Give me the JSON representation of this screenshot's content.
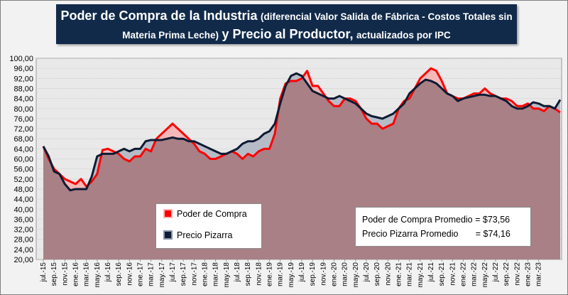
{
  "title": {
    "part1": "Poder de Compra de la Industria",
    "part2": "(diferencial Valor Salida de Fábrica - Costos Totales sin",
    "part3": "Materia Prima Leche)",
    "part4": "y Precio al Productor,",
    "part5": "actualizados por IPC"
  },
  "legend": {
    "poder": "Poder de Compra",
    "pizarra": "Precio Pizarra"
  },
  "averages": {
    "poder": "Poder de Compra Promedio = $73,56",
    "pizarra": "Precio Pizarra Promedio       = $74,16"
  },
  "colors": {
    "poder": "#ff0000",
    "pizarra": "#0d1b33",
    "below_fill": "#a88086",
    "poder_above_fill": "#f5b8b8",
    "pizarra_above_fill": "#b6bcc7",
    "title_bg": "#112a4a"
  },
  "chart_data": {
    "type": "line",
    "ylim": [
      20,
      100
    ],
    "ytick_step": 4,
    "yticks": [
      "20,00",
      "24,00",
      "28,00",
      "32,00",
      "36,00",
      "40,00",
      "44,00",
      "48,00",
      "52,00",
      "56,00",
      "60,00",
      "64,00",
      "68,00",
      "72,00",
      "76,00",
      "80,00",
      "84,00",
      "88,00",
      "92,00",
      "96,00",
      "100,00"
    ],
    "x_tick_labels": [
      "jul.-15",
      "sep.-15",
      "nov.-15",
      "ene.-16",
      "mar.-16",
      "may.-16",
      "jul.-16",
      "sep.-16",
      "nov.-16",
      "ene.-17",
      "mar.-17",
      "may.-17",
      "jul.-17",
      "sep.-17",
      "nov.-17",
      "ene.-18",
      "mar.-18",
      "may.-18",
      "jul.-18",
      "sep.-18",
      "nov.-18",
      "ene.-19",
      "mar.-19",
      "may.-19",
      "jul.-19",
      "sep.-19",
      "nov.-19",
      "ene.-20",
      "mar.-20",
      "may.-20",
      "jul.-20",
      "sep.-20",
      "nov.-20",
      "ene.-21",
      "mar.-21",
      "may.-21",
      "jul.-21",
      "sep.-21",
      "nov.-21",
      "ene.-22",
      "mar.-22",
      "may.-22",
      "jul.-22",
      "sep.-22",
      "nov.-22",
      "ene.-23",
      "mar.-23"
    ],
    "months_per_tick": 2,
    "grid": true,
    "legend_position": "bottom-left",
    "series": [
      {
        "name": "Poder de Compra",
        "values": [
          65,
          60,
          56,
          54,
          52,
          51,
          50,
          52,
          49,
          51,
          54,
          63.5,
          64,
          63,
          62,
          60,
          59,
          61,
          61,
          64,
          63,
          68,
          70,
          72,
          74,
          72,
          70,
          68,
          66,
          63,
          62,
          60,
          60,
          61,
          62,
          63,
          62,
          60,
          62,
          61,
          63,
          64,
          64,
          70,
          84,
          90,
          91,
          91,
          92,
          95,
          89,
          89,
          86,
          83,
          81,
          81,
          84,
          84,
          83,
          80,
          76,
          74,
          74,
          72,
          73,
          74,
          80,
          83,
          84,
          88,
          92,
          94,
          96,
          95,
          91,
          86,
          85,
          84,
          84,
          85,
          86,
          86,
          88,
          86,
          85,
          84,
          84,
          83,
          81,
          81,
          82,
          80,
          80,
          79,
          81,
          80,
          78.5
        ],
        "color": "#ff0000"
      },
      {
        "name": "Precio Pizarra",
        "values": [
          65,
          61,
          55,
          54,
          50,
          47.5,
          48,
          48,
          48,
          53,
          61,
          62,
          62,
          62,
          63,
          64,
          63,
          64,
          64,
          67,
          67.5,
          67.5,
          67.5,
          68,
          68.5,
          68,
          68,
          67,
          67,
          66,
          65,
          64,
          63,
          62,
          62,
          63,
          64,
          66,
          67,
          67,
          68,
          70,
          71,
          74,
          82,
          89,
          93,
          94,
          93,
          90,
          87,
          86,
          85,
          84,
          84,
          85,
          84,
          83,
          82,
          80,
          78,
          77,
          76.5,
          76,
          77,
          78,
          80,
          82,
          86,
          88,
          90,
          91.5,
          91,
          90,
          88,
          86,
          85,
          83,
          84,
          84.5,
          85,
          85.5,
          85.5,
          85,
          85,
          84,
          83,
          81,
          80,
          80,
          81,
          82.5,
          82,
          81,
          81,
          80,
          83.5
        ],
        "color": "#0d1b33"
      }
    ]
  }
}
